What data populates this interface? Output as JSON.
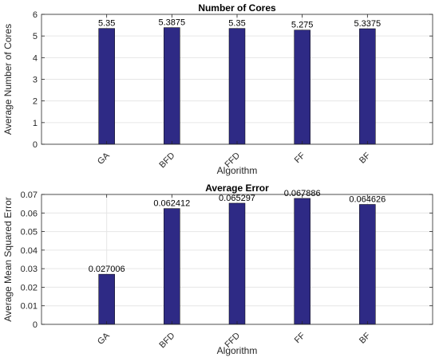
{
  "chart_data": [
    {
      "type": "bar",
      "title": "Number of Cores",
      "xlabel": "Algorithm",
      "ylabel": "Average Number of Cores",
      "categories": [
        "GA",
        "BFD",
        "FFD",
        "FF",
        "BF"
      ],
      "values": [
        5.35,
        5.3875,
        5.35,
        5.275,
        5.3375
      ],
      "value_labels": [
        "5.35",
        "5.3875",
        "5.35",
        "5.275",
        "5.3375"
      ],
      "ylim": [
        0,
        6
      ],
      "yticks": [
        "0",
        "1",
        "2",
        "3",
        "4",
        "5",
        "6"
      ],
      "grid": true,
      "bar_color": "#2e2a85"
    },
    {
      "type": "bar",
      "title": "Average Error",
      "xlabel": "Algorithm",
      "ylabel": "Average Mean Squared Error",
      "categories": [
        "GA",
        "BFD",
        "FFD",
        "FF",
        "BF"
      ],
      "values": [
        0.027006,
        0.062412,
        0.065297,
        0.067886,
        0.064626
      ],
      "value_labels": [
        "0.027006",
        "0.062412",
        "0.065297",
        "0.067886",
        "0.064626"
      ],
      "ylim": [
        0,
        0.07
      ],
      "yticks": [
        "0",
        "0.01",
        "0.02",
        "0.03",
        "0.04",
        "0.05",
        "0.06",
        "0.07"
      ],
      "grid": true,
      "bar_color": "#2e2a85"
    }
  ]
}
